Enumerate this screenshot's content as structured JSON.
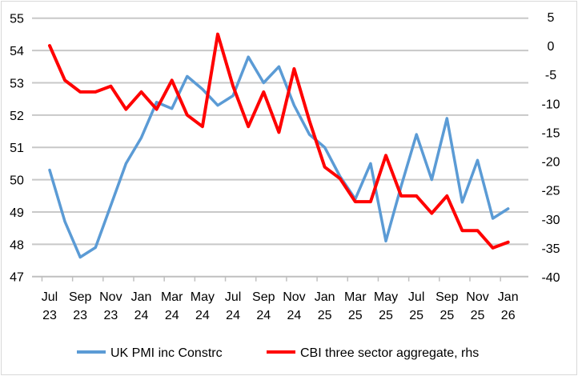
{
  "chart_data": {
    "type": "line",
    "title": "",
    "x": [
      "Jul 23",
      "Aug 23",
      "Sep 23",
      "Oct 23",
      "Nov 23",
      "Dec 23",
      "Jan 24",
      "Feb 24",
      "Mar 24",
      "Apr 24",
      "May 24",
      "Jun 24",
      "Jul 24",
      "Aug 24",
      "Sep 24",
      "Oct 24",
      "Nov 24",
      "Dec 24",
      "Jan 25",
      "Feb 25",
      "Mar 25",
      "Apr 25",
      "May 25",
      "Jun 25",
      "Jul 25",
      "Aug 25",
      "Sep 25",
      "Oct 25",
      "Nov 25",
      "Dec 25",
      "Jan 26"
    ],
    "x_tick_labels": [
      [
        "Jul",
        "23"
      ],
      [
        "Sep",
        "23"
      ],
      [
        "Nov",
        "23"
      ],
      [
        "Jan",
        "24"
      ],
      [
        "Mar",
        "24"
      ],
      [
        "May",
        "24"
      ],
      [
        "Jul",
        "24"
      ],
      [
        "Sep",
        "24"
      ],
      [
        "Nov",
        "24"
      ],
      [
        "Jan",
        "25"
      ],
      [
        "Mar",
        "25"
      ],
      [
        "May",
        "25"
      ],
      [
        "Jul",
        "25"
      ],
      [
        "Sep",
        "25"
      ],
      [
        "Nov",
        "25"
      ],
      [
        "Jan",
        "26"
      ]
    ],
    "series": [
      {
        "name": "UK PMI inc Constrc",
        "axis": "left",
        "color": "#5b9bd5",
        "values": [
          50.3,
          48.7,
          47.6,
          47.9,
          49.2,
          50.5,
          51.3,
          52.4,
          52.2,
          53.2,
          52.8,
          52.3,
          52.6,
          53.8,
          53.0,
          53.5,
          52.3,
          51.4,
          51.0,
          50.1,
          49.4,
          50.5,
          48.1,
          49.8,
          51.4,
          50.0,
          51.9,
          49.3,
          50.6,
          48.8,
          49.1
        ]
      },
      {
        "name": "CBI three sector aggregate, rhs",
        "axis": "right",
        "color": "#ff0000",
        "values": [
          0,
          -6,
          -8,
          -8,
          -7,
          -11,
          -8,
          -11,
          -6,
          -12,
          -14,
          2,
          -7,
          -14,
          -8,
          -15,
          -4,
          -13,
          -21,
          -23,
          -27,
          -27,
          -19,
          -26,
          -26,
          -29,
          -26,
          -32,
          -32,
          -35,
          -34
        ]
      }
    ],
    "left_axis": {
      "ylim": [
        47,
        55
      ],
      "ticks": [
        "55",
        "54",
        "53",
        "52",
        "51",
        "50",
        "49",
        "48",
        "47"
      ]
    },
    "right_axis": {
      "ylim": [
        -40,
        5
      ],
      "ticks": [
        "5",
        "0",
        "-5",
        "-10",
        "-15",
        "-20",
        "-25",
        "-30",
        "-35",
        "-40"
      ]
    },
    "grid": true,
    "legend_placement": "bottom"
  }
}
